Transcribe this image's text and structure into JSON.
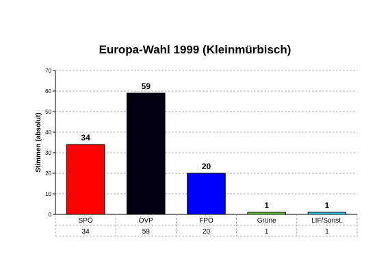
{
  "chart_data": {
    "type": "bar",
    "title": "Europa-Wahl 1999 (Kleinmürbisch)",
    "ylabel": "Stimmen (absolut)",
    "xlabel": "",
    "ylim": [
      0,
      70
    ],
    "yticks": [
      0,
      10,
      20,
      30,
      40,
      50,
      60,
      70
    ],
    "grid": true,
    "categories": [
      "SPÖ",
      "ÖVP",
      "FPÖ",
      "Grüne",
      "LIF/Sonst."
    ],
    "values": [
      34,
      59,
      20,
      1,
      1
    ],
    "colors": [
      "#ff0000",
      "#000010",
      "#0000ff",
      "#66cc33",
      "#33ccee"
    ],
    "data_table": true
  }
}
